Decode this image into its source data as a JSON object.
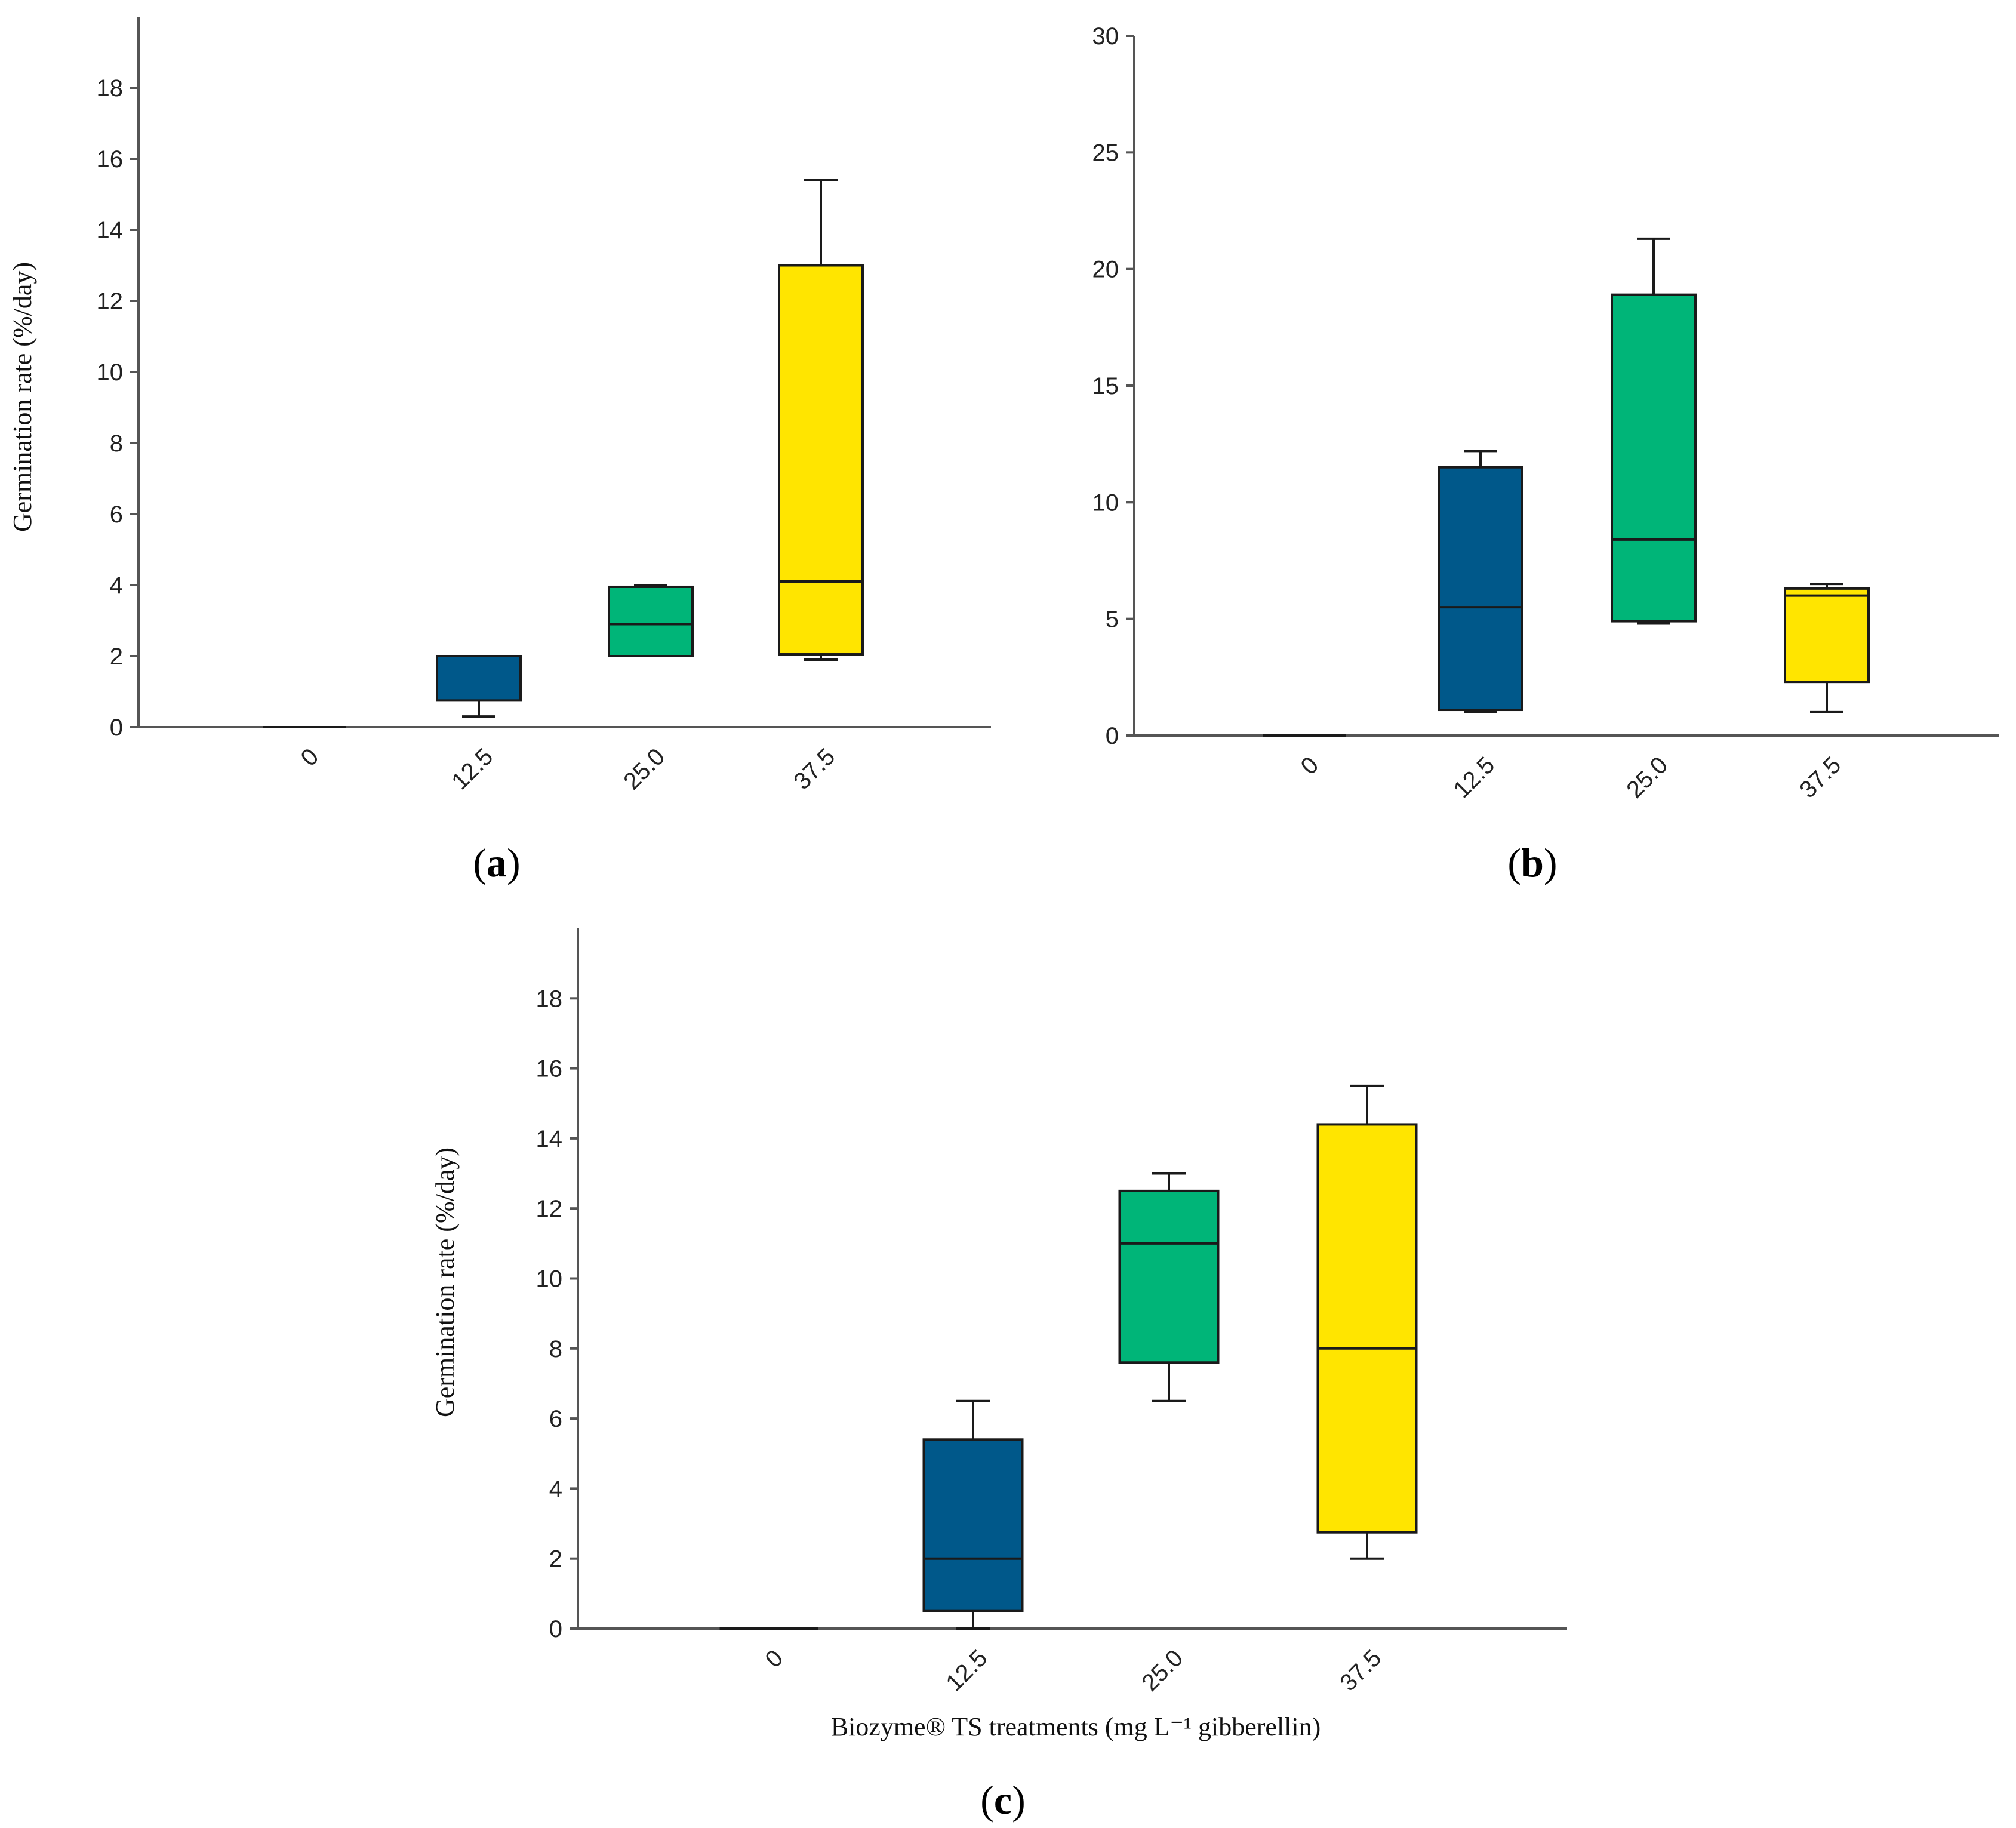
{
  "colors": {
    "c0": "#00588A",
    "c1": "#00B578",
    "c2": "#FFE500",
    "zero": "#1a1a1a"
  },
  "shared_xlabel": "Biozyme® TS treatments (mg L⁻¹ gibberellin)",
  "chart_data": [
    {
      "type": "box",
      "panel": "a",
      "panel_label": "a",
      "ylabel": "Germination rate (%/day)",
      "xlabel": "",
      "ylim": [
        0,
        20
      ],
      "yticks": [
        0,
        2,
        4,
        6,
        8,
        10,
        12,
        14,
        16,
        18
      ],
      "categories": [
        "0",
        "12.5",
        "25.0",
        "37.5"
      ],
      "boxes": [
        {
          "category": "0",
          "min": 0,
          "q1": 0,
          "median": 0,
          "q3": 0,
          "max": 0
        },
        {
          "category": "12.5",
          "min": 0.3,
          "q1": 0.75,
          "median": 2.0,
          "q3": 2.0,
          "max": 2.0
        },
        {
          "category": "25.0",
          "min": 2.0,
          "q1": 2.0,
          "median": 2.9,
          "q3": 3.95,
          "max": 4.0
        },
        {
          "category": "37.5",
          "min": 1.9,
          "q1": 2.05,
          "median": 4.1,
          "q3": 13.0,
          "max": 15.4
        }
      ]
    },
    {
      "type": "box",
      "panel": "b",
      "panel_label": "b",
      "ylabel": "",
      "xlabel": "",
      "ylim": [
        0,
        30
      ],
      "yticks": [
        0,
        5,
        10,
        15,
        20,
        25,
        30
      ],
      "categories": [
        "0",
        "12.5",
        "25.0",
        "37.5"
      ],
      "boxes": [
        {
          "category": "0",
          "min": 0,
          "q1": 0,
          "median": 0,
          "q3": 0,
          "max": 0
        },
        {
          "category": "12.5",
          "min": 1.0,
          "q1": 1.1,
          "median": 5.5,
          "q3": 11.5,
          "max": 12.2
        },
        {
          "category": "25.0",
          "min": 4.8,
          "q1": 4.9,
          "median": 8.4,
          "q3": 18.9,
          "max": 21.3
        },
        {
          "category": "37.5",
          "min": 1.0,
          "q1": 2.3,
          "median": 6.0,
          "q3": 6.3,
          "max": 6.5
        }
      ]
    },
    {
      "type": "box",
      "panel": "c",
      "panel_label": "c",
      "ylabel": "Germination rate (%/day)",
      "xlabel": "Biozyme® TS treatments (mg L⁻¹ gibberellin)",
      "ylim": [
        0,
        20
      ],
      "yticks": [
        0,
        2,
        4,
        6,
        8,
        10,
        12,
        14,
        16,
        18
      ],
      "categories": [
        "0",
        "12.5",
        "25.0",
        "37.5"
      ],
      "boxes": [
        {
          "category": "0",
          "min": 0,
          "q1": 0,
          "median": 0,
          "q3": 0,
          "max": 0
        },
        {
          "category": "12.5",
          "min": 0,
          "q1": 0.5,
          "median": 2.0,
          "q3": 5.4,
          "max": 6.5
        },
        {
          "category": "25.0",
          "min": 6.5,
          "q1": 7.6,
          "median": 11.0,
          "q3": 12.5,
          "max": 13.0
        },
        {
          "category": "37.5",
          "min": 2.0,
          "q1": 2.75,
          "median": 8.0,
          "q3": 14.4,
          "max": 15.5
        }
      ]
    }
  ]
}
